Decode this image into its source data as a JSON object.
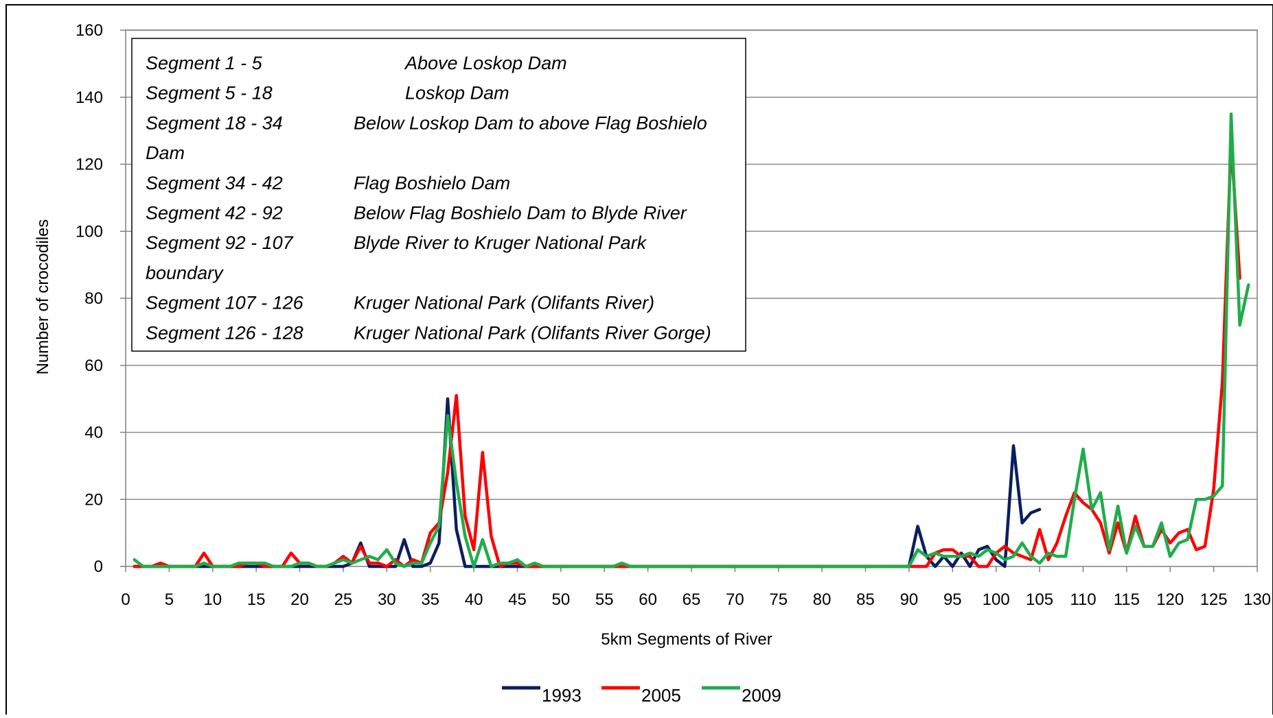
{
  "chart_data": {
    "type": "line",
    "xlabel": "5km Segments of River",
    "ylabel": "Number of crocodiles",
    "xlim": [
      0,
      130
    ],
    "ylim": [
      0,
      160
    ],
    "x_ticks": [
      "0",
      "5",
      "10",
      "15",
      "20",
      "25",
      "30",
      "35",
      "40",
      "45",
      "50",
      "55",
      "60",
      "65",
      "70",
      "75",
      "80",
      "85",
      "90",
      "95",
      "100",
      "105",
      "110",
      "115",
      "120",
      "125",
      "130"
    ],
    "y_ticks": [
      "0",
      "20",
      "40",
      "60",
      "80",
      "100",
      "120",
      "140",
      "160"
    ],
    "grid": "horizontal",
    "legend_position": "bottom-center",
    "series": [
      {
        "name": "1993",
        "color": "#0b1f5e",
        "points": [
          [
            1,
            0
          ],
          [
            2,
            0
          ],
          [
            3,
            0
          ],
          [
            4,
            0
          ],
          [
            5,
            0
          ],
          [
            6,
            0
          ],
          [
            7,
            0
          ],
          [
            8,
            0
          ],
          [
            9,
            0
          ],
          [
            10,
            0
          ],
          [
            11,
            0
          ],
          [
            12,
            0
          ],
          [
            13,
            0
          ],
          [
            14,
            0
          ],
          [
            15,
            0
          ],
          [
            16,
            0
          ],
          [
            17,
            0
          ],
          [
            18,
            0
          ],
          [
            19,
            0
          ],
          [
            20,
            0
          ],
          [
            21,
            0
          ],
          [
            22,
            0
          ],
          [
            23,
            0
          ],
          [
            24,
            0
          ],
          [
            25,
            0
          ],
          [
            26,
            1
          ],
          [
            27,
            7
          ],
          [
            28,
            0
          ],
          [
            29,
            0
          ],
          [
            30,
            0
          ],
          [
            31,
            0
          ],
          [
            32,
            8
          ],
          [
            33,
            0
          ],
          [
            34,
            0
          ],
          [
            35,
            1
          ],
          [
            36,
            7
          ],
          [
            37,
            50
          ],
          [
            38,
            11
          ],
          [
            39,
            0
          ],
          [
            40,
            0
          ],
          [
            41,
            0
          ],
          [
            42,
            0
          ],
          [
            43,
            0
          ],
          [
            44,
            0
          ],
          [
            45,
            0
          ],
          [
            46,
            0
          ],
          [
            47,
            0
          ],
          [
            48,
            0
          ],
          [
            49,
            0
          ],
          [
            50,
            0
          ],
          [
            55,
            0
          ],
          [
            60,
            0
          ],
          [
            65,
            0
          ],
          [
            70,
            0
          ],
          [
            75,
            0
          ],
          [
            80,
            0
          ],
          [
            85,
            0
          ],
          [
            89,
            0
          ],
          [
            90,
            0
          ],
          [
            91,
            12
          ],
          [
            92,
            3
          ],
          [
            93,
            0
          ],
          [
            94,
            3
          ],
          [
            95,
            0
          ],
          [
            96,
            4
          ],
          [
            97,
            0
          ],
          [
            98,
            5
          ],
          [
            99,
            6
          ],
          [
            100,
            2
          ],
          [
            101,
            0
          ],
          [
            102,
            36
          ],
          [
            103,
            13
          ],
          [
            104,
            16
          ],
          [
            105,
            17
          ]
        ]
      },
      {
        "name": "2005",
        "color": "#ff0000",
        "points": [
          [
            1,
            0
          ],
          [
            2,
            0
          ],
          [
            3,
            0
          ],
          [
            4,
            1
          ],
          [
            5,
            0
          ],
          [
            6,
            0
          ],
          [
            7,
            0
          ],
          [
            8,
            0
          ],
          [
            9,
            4
          ],
          [
            10,
            0
          ],
          [
            11,
            0
          ],
          [
            12,
            0
          ],
          [
            13,
            0
          ],
          [
            14,
            1
          ],
          [
            15,
            1
          ],
          [
            16,
            0
          ],
          [
            17,
            0
          ],
          [
            18,
            0
          ],
          [
            19,
            4
          ],
          [
            20,
            1
          ],
          [
            21,
            1
          ],
          [
            22,
            0
          ],
          [
            23,
            0
          ],
          [
            24,
            1
          ],
          [
            25,
            3
          ],
          [
            26,
            1
          ],
          [
            27,
            6
          ],
          [
            28,
            1
          ],
          [
            29,
            1
          ],
          [
            30,
            0
          ],
          [
            31,
            2
          ],
          [
            32,
            0
          ],
          [
            33,
            2
          ],
          [
            34,
            1
          ],
          [
            35,
            10
          ],
          [
            36,
            13
          ],
          [
            37,
            28
          ],
          [
            38,
            51
          ],
          [
            39,
            15
          ],
          [
            40,
            5
          ],
          [
            41,
            34
          ],
          [
            42,
            9
          ],
          [
            43,
            0
          ],
          [
            44,
            1
          ],
          [
            45,
            1
          ],
          [
            46,
            0
          ],
          [
            47,
            0
          ],
          [
            48,
            0
          ],
          [
            50,
            0
          ],
          [
            55,
            0
          ],
          [
            57,
            0
          ],
          [
            60,
            0
          ],
          [
            65,
            0
          ],
          [
            70,
            0
          ],
          [
            75,
            0
          ],
          [
            80,
            0
          ],
          [
            85,
            0
          ],
          [
            90,
            0
          ],
          [
            91,
            0
          ],
          [
            92,
            0
          ],
          [
            93,
            4
          ],
          [
            94,
            5
          ],
          [
            95,
            5
          ],
          [
            96,
            3
          ],
          [
            97,
            3
          ],
          [
            98,
            0
          ],
          [
            99,
            0
          ],
          [
            100,
            4
          ],
          [
            101,
            6
          ],
          [
            102,
            4
          ],
          [
            103,
            3
          ],
          [
            104,
            2
          ],
          [
            105,
            11
          ],
          [
            106,
            2
          ],
          [
            107,
            7
          ],
          [
            108,
            15
          ],
          [
            109,
            22
          ],
          [
            110,
            19
          ],
          [
            111,
            17
          ],
          [
            112,
            13
          ],
          [
            113,
            4
          ],
          [
            114,
            13
          ],
          [
            115,
            4
          ],
          [
            116,
            15
          ],
          [
            117,
            6
          ],
          [
            118,
            6
          ],
          [
            119,
            11
          ],
          [
            120,
            7
          ],
          [
            121,
            10
          ],
          [
            122,
            11
          ],
          [
            123,
            5
          ],
          [
            124,
            6
          ],
          [
            125,
            23
          ],
          [
            126,
            55
          ],
          [
            127,
            127
          ],
          [
            128,
            86
          ]
        ]
      },
      {
        "name": "2009",
        "color": "#1fad4b",
        "points": [
          [
            1,
            2
          ],
          [
            2,
            0
          ],
          [
            3,
            0
          ],
          [
            4,
            0
          ],
          [
            5,
            0
          ],
          [
            6,
            0
          ],
          [
            7,
            0
          ],
          [
            8,
            0
          ],
          [
            9,
            1
          ],
          [
            10,
            0
          ],
          [
            11,
            0
          ],
          [
            12,
            0
          ],
          [
            13,
            1
          ],
          [
            14,
            1
          ],
          [
            15,
            1
          ],
          [
            16,
            1
          ],
          [
            17,
            0
          ],
          [
            18,
            0
          ],
          [
            19,
            0
          ],
          [
            20,
            1
          ],
          [
            21,
            1
          ],
          [
            22,
            0
          ],
          [
            23,
            0
          ],
          [
            24,
            1
          ],
          [
            25,
            2
          ],
          [
            26,
            1
          ],
          [
            27,
            2
          ],
          [
            28,
            3
          ],
          [
            29,
            2
          ],
          [
            30,
            5
          ],
          [
            31,
            1
          ],
          [
            32,
            0
          ],
          [
            33,
            1
          ],
          [
            34,
            1
          ],
          [
            35,
            7
          ],
          [
            36,
            12
          ],
          [
            37,
            45
          ],
          [
            38,
            25
          ],
          [
            39,
            9
          ],
          [
            40,
            0
          ],
          [
            41,
            8
          ],
          [
            42,
            0
          ],
          [
            43,
            1
          ],
          [
            44,
            1
          ],
          [
            45,
            2
          ],
          [
            46,
            0
          ],
          [
            47,
            1
          ],
          [
            48,
            0
          ],
          [
            50,
            0
          ],
          [
            55,
            0
          ],
          [
            56,
            0
          ],
          [
            57,
            1
          ],
          [
            58,
            0
          ],
          [
            60,
            0
          ],
          [
            65,
            0
          ],
          [
            70,
            0
          ],
          [
            75,
            0
          ],
          [
            80,
            0
          ],
          [
            85,
            0
          ],
          [
            90,
            0
          ],
          [
            91,
            5
          ],
          [
            92,
            3
          ],
          [
            93,
            4
          ],
          [
            94,
            3
          ],
          [
            95,
            3
          ],
          [
            96,
            3
          ],
          [
            97,
            4
          ],
          [
            98,
            3
          ],
          [
            99,
            5
          ],
          [
            100,
            4
          ],
          [
            101,
            2
          ],
          [
            102,
            3
          ],
          [
            103,
            7
          ],
          [
            104,
            3
          ],
          [
            105,
            1
          ],
          [
            106,
            4
          ],
          [
            107,
            3
          ],
          [
            108,
            3
          ],
          [
            109,
            20
          ],
          [
            110,
            35
          ],
          [
            111,
            17
          ],
          [
            112,
            22
          ],
          [
            113,
            5
          ],
          [
            114,
            18
          ],
          [
            115,
            4
          ],
          [
            116,
            12
          ],
          [
            117,
            6
          ],
          [
            118,
            6
          ],
          [
            119,
            13
          ],
          [
            120,
            3
          ],
          [
            121,
            7
          ],
          [
            122,
            8
          ],
          [
            123,
            20
          ],
          [
            124,
            20
          ],
          [
            125,
            21
          ],
          [
            126,
            24
          ],
          [
            127,
            135
          ],
          [
            128,
            72
          ],
          [
            129,
            84
          ]
        ]
      }
    ],
    "annotation": {
      "lines": [
        {
          "left": "Segment 1 - 5",
          "right": "Above Loskop Dam",
          "indent": "wide"
        },
        {
          "left": "Segment 5 - 18",
          "right": "Loskop Dam",
          "indent": "wide"
        },
        {
          "left": "Segment 18 - 34",
          "right": "Below Loskop Dam to above Flag Boshielo",
          "indent": "normal"
        },
        {
          "left": "Dam",
          "right": "",
          "indent": "normal"
        },
        {
          "left": "Segment 34 - 42",
          "right": "Flag Boshielo Dam",
          "indent": "normal"
        },
        {
          "left": "Segment 42 - 92",
          "right": "Below Flag Boshielo Dam to Blyde River",
          "indent": "normal"
        },
        {
          "left": "Segment 92 - 107",
          "right": "Blyde River to Kruger National Park",
          "indent": "normal"
        },
        {
          "left": "boundary",
          "right": "",
          "indent": "normal"
        },
        {
          "left": "Segment 107 - 126",
          "right": "Kruger National Park (Olifants River)",
          "indent": "normal"
        },
        {
          "left": "Segment 126 - 128",
          "right": "Kruger National Park (Olifants River Gorge)",
          "indent": "normal"
        }
      ]
    }
  }
}
